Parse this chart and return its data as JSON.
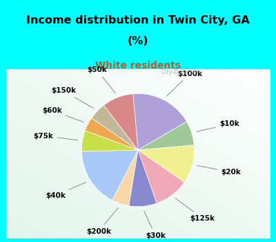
{
  "title_line1": "Income distribution in Twin City, GA",
  "title_line2": "(%)",
  "subtitle": "White residents",
  "title_color": "#000000",
  "subtitle_color": "#b06030",
  "bg_cyan": "#00FFFF",
  "labels": [
    "$100k",
    "$10k",
    "$20k",
    "$125k",
    "$30k",
    "$200k",
    "$40k",
    "$75k",
    "$60k",
    "$150k",
    "$50k"
  ],
  "values": [
    18,
    7,
    11,
    10,
    8,
    5,
    17,
    6,
    4,
    5,
    9
  ],
  "colors": [
    "#b0a0d8",
    "#a0c898",
    "#f0f090",
    "#f0a8b8",
    "#8888cc",
    "#f8d8a8",
    "#a8c8f8",
    "#c8e048",
    "#f0a850",
    "#c0b898",
    "#d88888"
  ],
  "startangle": 95,
  "title_fontsize": 11.5,
  "subtitle_fontsize": 10,
  "label_fontsize": 7.5
}
